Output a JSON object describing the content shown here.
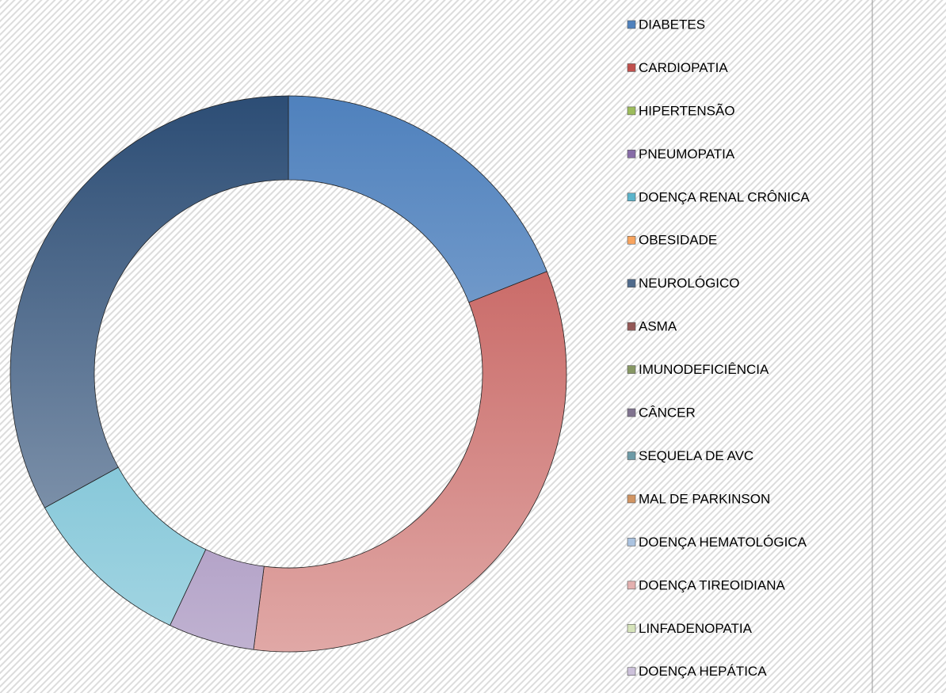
{
  "chart_data": {
    "type": "donut",
    "categories": [
      "DIABETES",
      "CARDIOPATIA",
      "HIPERTENSÃO",
      "PNEUMOPATIA",
      "DOENÇA RENAL CRÔNICA",
      "OBESIDADE",
      "NEUROLÓGICO",
      "ASMA",
      "IMUNODEFICIÊNCIA",
      "CÂNCER",
      "SEQUELA DE AVC",
      "MAL DE PARKINSON",
      "DOENÇA HEMATOLÓGICA",
      "DOENÇA TIREOIDIANA",
      "LINFADENOPATIA",
      "DOENÇA HEPÁTICA"
    ],
    "values": [
      19,
      33,
      0,
      5,
      10,
      0,
      33,
      0,
      0,
      0,
      0,
      0,
      0,
      0,
      0,
      0
    ],
    "colors": [
      "#4F81BD",
      "#C0504D",
      "#9BBB59",
      "#8064A2",
      "#4BACC6",
      "#F79646",
      "#2C4D75",
      "#772C2A",
      "#5F7530",
      "#4D3B62",
      "#276A7C",
      "#B65708",
      "#729ACA",
      "#CD7371",
      "#AFC97A",
      "#9983B5"
    ],
    "legend": "right"
  }
}
